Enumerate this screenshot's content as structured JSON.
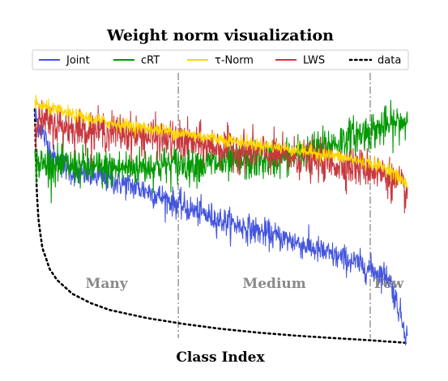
{
  "chart_data": {
    "type": "line",
    "title": "Weight norm visualization",
    "xlabel": "Class Index",
    "ylabel": "",
    "grid": false,
    "legend_placement": "top",
    "regions": [
      "Many",
      "Medium",
      "Few"
    ],
    "region_boundaries": [
      385,
      900
    ],
    "x_range": [
      0,
      1000
    ],
    "y_range": [
      0,
      1
    ],
    "series": [
      {
        "name": "Joint",
        "color": "#4455dd",
        "noise": 0.025,
        "x": [
          0,
          50,
          100,
          200,
          300,
          400,
          500,
          600,
          700,
          800,
          850,
          900,
          950,
          1000
        ],
        "values": [
          0.86,
          0.7,
          0.65,
          0.62,
          0.58,
          0.52,
          0.47,
          0.43,
          0.39,
          0.34,
          0.32,
          0.29,
          0.26,
          0.04
        ]
      },
      {
        "name": "cRT",
        "color": "#009900",
        "noise": 0.035,
        "x": [
          0,
          100,
          200,
          300,
          400,
          500,
          600,
          700,
          800,
          850,
          900,
          950,
          1000
        ],
        "values": [
          0.68,
          0.67,
          0.66,
          0.67,
          0.68,
          0.68,
          0.69,
          0.71,
          0.75,
          0.78,
          0.8,
          0.82,
          0.84
        ]
      },
      {
        "name": "τ-Norm",
        "color": "#ffd700",
        "noise": 0.012,
        "x": [
          0,
          100,
          200,
          300,
          400,
          500,
          600,
          700,
          800,
          900,
          950,
          1000
        ],
        "values": [
          0.9,
          0.86,
          0.83,
          0.81,
          0.79,
          0.77,
          0.75,
          0.73,
          0.71,
          0.68,
          0.66,
          0.6
        ]
      },
      {
        "name": "LWS",
        "color": "#c8383e",
        "noise": 0.035,
        "x": [
          0,
          100,
          200,
          300,
          400,
          500,
          600,
          700,
          800,
          900,
          950,
          1000
        ],
        "values": [
          0.84,
          0.81,
          0.8,
          0.78,
          0.76,
          0.74,
          0.72,
          0.7,
          0.68,
          0.66,
          0.63,
          0.57
        ]
      },
      {
        "name": "data",
        "color": "#000000",
        "noise": 0,
        "dotted": true,
        "x": [
          0,
          5,
          10,
          20,
          40,
          60,
          100,
          150,
          200,
          300,
          400,
          500,
          600,
          700,
          800,
          900,
          1000
        ],
        "values": [
          0.88,
          0.58,
          0.47,
          0.37,
          0.29,
          0.25,
          0.2,
          0.165,
          0.14,
          0.11,
          0.088,
          0.07,
          0.056,
          0.045,
          0.036,
          0.028,
          0.018
        ]
      }
    ]
  }
}
